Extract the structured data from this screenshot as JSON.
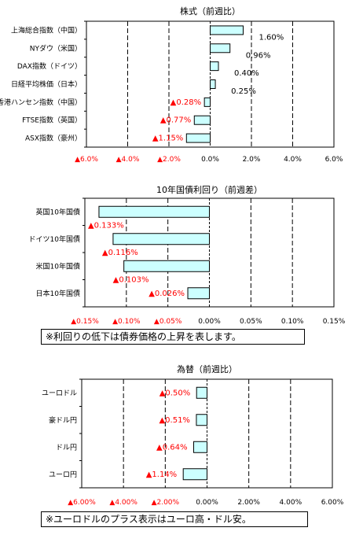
{
  "colors": {
    "bar_fill": "#ccffff",
    "bar_stroke": "#000000",
    "negative_text": "#ff0000",
    "grid": "#000000"
  },
  "chart_data": [
    {
      "type": "bar",
      "orientation": "horizontal",
      "title": "株式（前週比）",
      "xlim": [
        -6,
        6
      ],
      "grid": true,
      "categories": [
        "上海総合指数（中国）",
        "NYダウ（米国）",
        "DAX指数（ドイツ）",
        "日経平均株価（日本）",
        "香港ハンセン指数（中国）",
        "FTSE指数（英国）",
        "ASX指数（豪州）"
      ],
      "values": [
        1.6,
        0.96,
        0.4,
        0.25,
        -0.28,
        -0.77,
        -1.15
      ],
      "value_labels": [
        "1.60%",
        "0.96%",
        "0.40%",
        "0.25%",
        "▲0.28%",
        "▲0.77%",
        "▲1.15%"
      ],
      "tick_labels": [
        "▲6.0%",
        "▲4.0%",
        "▲2.0%",
        "0.0%",
        "2.0%",
        "4.0%",
        "6.0%"
      ]
    },
    {
      "type": "bar",
      "orientation": "horizontal",
      "title": "10年国債利回り（前週差）",
      "xlim": [
        -0.15,
        0.15
      ],
      "grid": true,
      "categories": [
        "英国10年国債",
        "ドイツ10年国債",
        "米国10年国債",
        "日本10年国債"
      ],
      "values": [
        -0.133,
        -0.116,
        -0.103,
        -0.026
      ],
      "value_labels": [
        "▲0.133%",
        "▲0.116%",
        "▲0.103%",
        "▲0.026%"
      ],
      "tick_labels": [
        "▲0.15%",
        "▲0.10%",
        "▲0.05%",
        "0.00%",
        "0.05%",
        "0.10%",
        "0.15%"
      ],
      "note": "※利回りの低下は債券価格の上昇を表します。"
    },
    {
      "type": "bar",
      "orientation": "horizontal",
      "title": "為替（前週比）",
      "xlim": [
        -6,
        6
      ],
      "grid": true,
      "categories": [
        "ユーロドル",
        "豪ドル円",
        "ドル円",
        "ユーロ円"
      ],
      "values": [
        -0.5,
        -0.51,
        -0.64,
        -1.14
      ],
      "value_labels": [
        "▲0.50%",
        "▲0.51%",
        "▲0.64%",
        "▲1.14%"
      ],
      "tick_labels": [
        "▲6.00%",
        "▲4.00%",
        "▲2.00%",
        "0.00%",
        "2.00%",
        "4.00%",
        "6.00%"
      ],
      "note": "※ユーロドルのプラス表示はユーロ高・ドル安。"
    }
  ]
}
